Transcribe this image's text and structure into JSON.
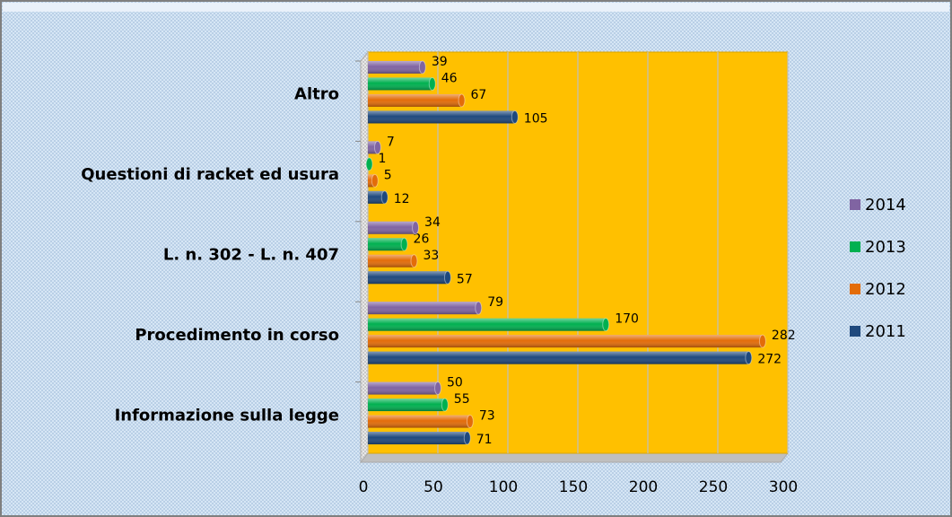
{
  "chart_data": {
    "type": "bar",
    "orientation": "horizontal",
    "categories": [
      "Informazione sulla legge",
      "Procedimento in corso",
      "L. n. 302 - L. n. 407",
      "Questioni di racket ed usura",
      "Altro"
    ],
    "series": [
      {
        "name": "2011",
        "color": "#1f497d",
        "values": [
          71,
          272,
          57,
          12,
          105
        ]
      },
      {
        "name": "2012",
        "color": "#e36c09",
        "values": [
          73,
          282,
          33,
          5,
          67
        ]
      },
      {
        "name": "2013",
        "color": "#00b050",
        "values": [
          55,
          170,
          26,
          1,
          46
        ]
      },
      {
        "name": "2014",
        "color": "#8064a2",
        "values": [
          50,
          79,
          34,
          7,
          39
        ]
      }
    ],
    "xlim": [
      0,
      300
    ],
    "xticks": [
      0,
      50,
      100,
      150,
      200,
      250,
      300
    ],
    "grid": true,
    "legend": "right",
    "plot_color": "#ffc000"
  }
}
